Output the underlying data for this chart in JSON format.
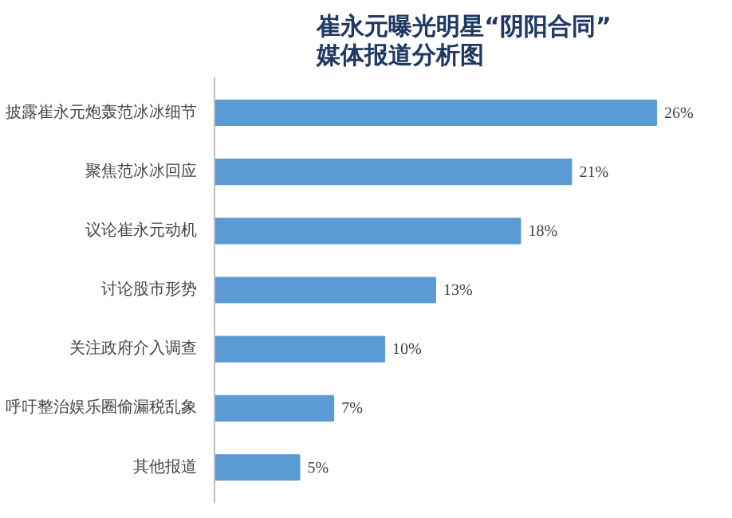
{
  "chart_data": {
    "type": "bar",
    "orientation": "horizontal",
    "title": "崔永元曝光明星“阴阳合同”\n媒体报道分析图",
    "categories": [
      "披露崔永元炮轰范冰冰细节",
      "聚焦范冰冰回应",
      "议论崔永元动机",
      "讨论股市形势",
      "关注政府介入调查",
      "呼吁整治娱乐圈偷漏税乱象",
      "其他报道"
    ],
    "values": [
      26,
      21,
      18,
      13,
      10,
      7,
      5
    ],
    "value_labels": [
      "26%",
      "21%",
      "18%",
      "13%",
      "10%",
      "7%",
      "5%"
    ],
    "color": "#5b9bd5",
    "grid": false
  }
}
